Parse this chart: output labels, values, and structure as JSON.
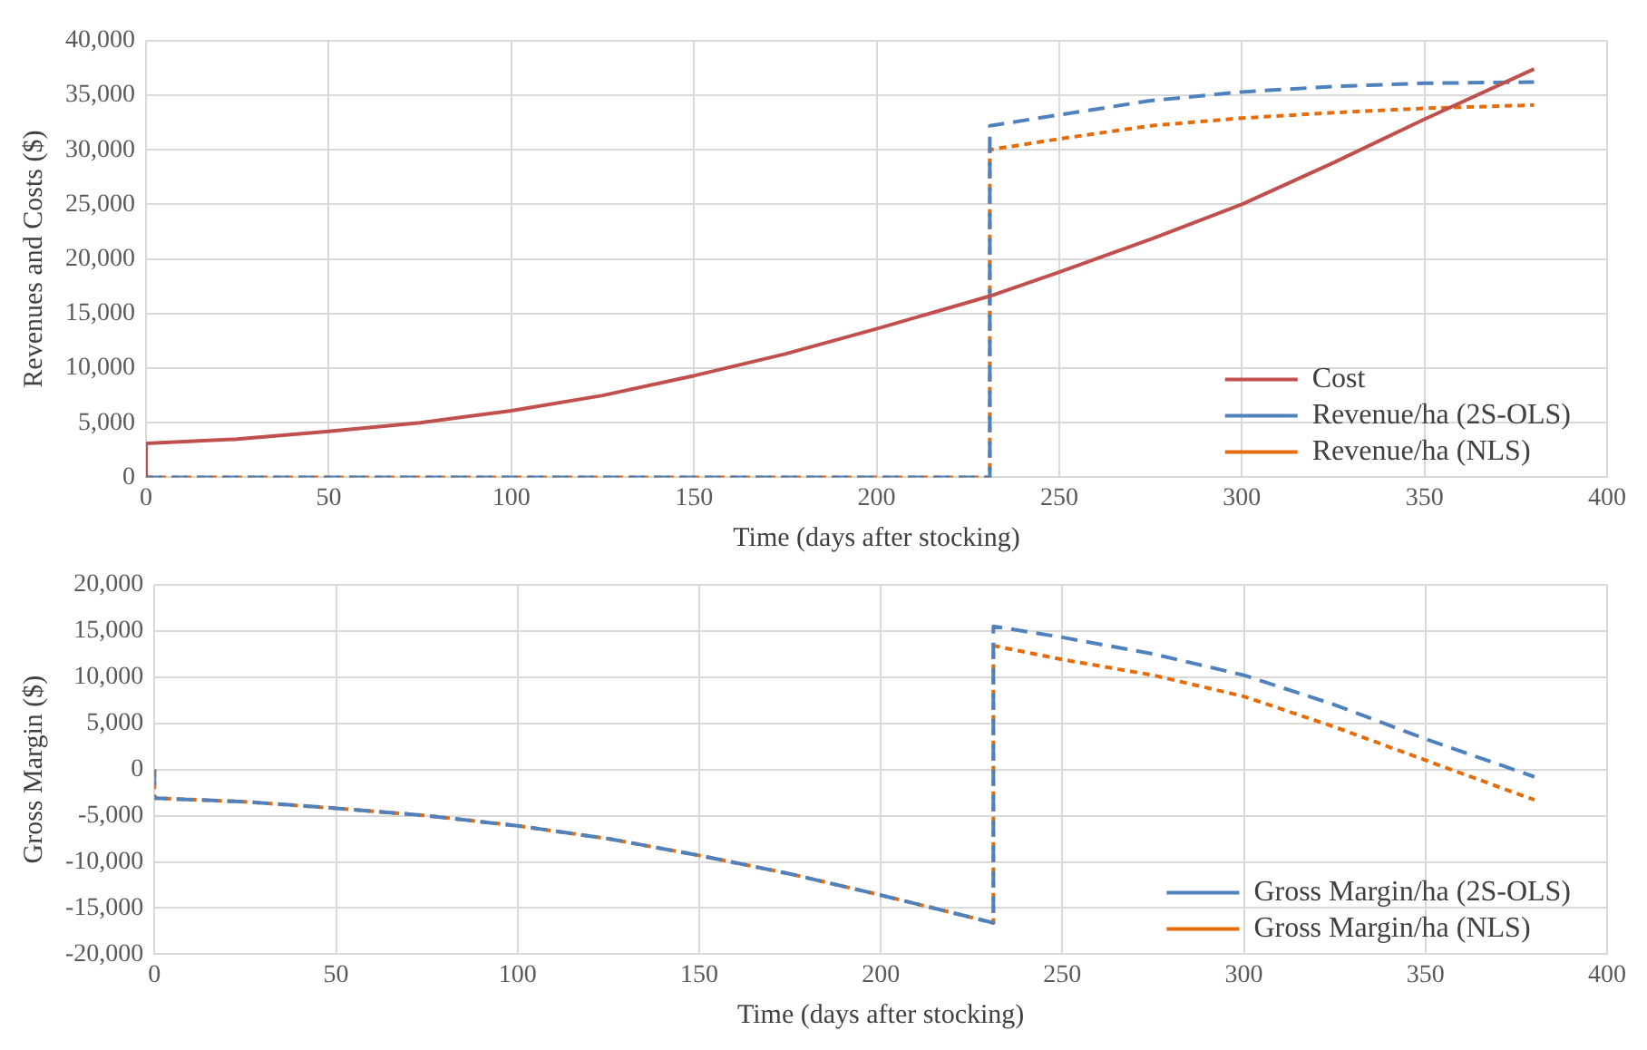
{
  "chart_data": [
    {
      "type": "line",
      "xlabel": "Time (days after stocking)",
      "ylabel": "Revenues and Costs ($)",
      "xlim": [
        0,
        400
      ],
      "xticks": [
        0,
        50,
        100,
        150,
        200,
        250,
        300,
        350,
        400
      ],
      "ylim": [
        0,
        40000
      ],
      "yticks": [
        {
          "value": 0,
          "label": "0"
        },
        {
          "value": 5000,
          "label": "5,000"
        },
        {
          "value": 10000,
          "label": "10,000"
        },
        {
          "value": 15000,
          "label": "15,000"
        },
        {
          "value": 20000,
          "label": "20,000"
        },
        {
          "value": 25000,
          "label": "25,000"
        },
        {
          "value": 30000,
          "label": "30,000"
        },
        {
          "value": 35000,
          "label": "35,000"
        },
        {
          "value": 40000,
          "label": "40,000"
        }
      ],
      "grid": true,
      "legend": "bottom right",
      "marker": "none",
      "series": [
        {
          "name": "Cost",
          "color": "#c0504d",
          "line_style": "solid",
          "x": [
            0,
            0,
            25,
            50,
            75,
            100,
            125,
            150,
            175,
            200,
            231,
            250,
            275,
            300,
            325,
            350,
            380
          ],
          "values": [
            0,
            3100,
            3500,
            4200,
            5000,
            6100,
            7500,
            9300,
            11300,
            13600,
            16600,
            18800,
            21800,
            25000,
            28800,
            32800,
            37400
          ]
        },
        {
          "name": "Revenue/ha (2S-OLS)",
          "color": "#4f81bd",
          "line_style": "dashed",
          "x": [
            0,
            231,
            231,
            250,
            275,
            300,
            325,
            350,
            380
          ],
          "values": [
            0,
            0,
            32200,
            33200,
            34500,
            35300,
            35800,
            36100,
            36200
          ]
        },
        {
          "name": "Revenue/ha (NLS)",
          "color": "#e46c0a",
          "line_style": "dotted",
          "x": [
            0,
            231,
            231,
            250,
            275,
            300,
            325,
            350,
            380
          ],
          "values": [
            0,
            0,
            30000,
            31000,
            32200,
            32900,
            33400,
            33800,
            34100
          ]
        }
      ]
    },
    {
      "type": "line",
      "xlabel": "Time (days after stocking)",
      "ylabel": "Gross Margin ($)",
      "xlim": [
        0,
        400
      ],
      "xticks": [
        0,
        50,
        100,
        150,
        200,
        250,
        300,
        350,
        400
      ],
      "ylim": [
        -20000,
        20000
      ],
      "yticks": [
        {
          "value": -20000,
          "label": "-20,000"
        },
        {
          "value": -15000,
          "label": "-15,000"
        },
        {
          "value": -10000,
          "label": "-10,000"
        },
        {
          "value": -5000,
          "label": "-5,000"
        },
        {
          "value": 0,
          "label": "0"
        },
        {
          "value": 5000,
          "label": "5,000"
        },
        {
          "value": 10000,
          "label": "10,000"
        },
        {
          "value": 15000,
          "label": "15,000"
        },
        {
          "value": 20000,
          "label": "20,000"
        }
      ],
      "grid": true,
      "legend": "bottom right",
      "marker": "none",
      "series": [
        {
          "name": "Gross Margin/ha (2S-OLS)",
          "color": "#4f81bd",
          "line_style": "dashed",
          "x": [
            0,
            0,
            25,
            50,
            75,
            100,
            125,
            150,
            175,
            200,
            231,
            231,
            250,
            275,
            300,
            325,
            350,
            380
          ],
          "values": [
            0,
            -3100,
            -3500,
            -4200,
            -5000,
            -6100,
            -7500,
            -9300,
            -11300,
            -13600,
            -16600,
            15500,
            14300,
            12500,
            10200,
            7000,
            3300,
            -800
          ]
        },
        {
          "name": "Gross Margin/ha (NLS)",
          "color": "#e46c0a",
          "line_style": "dotted",
          "x": [
            0,
            0,
            25,
            50,
            75,
            100,
            125,
            150,
            175,
            200,
            231,
            231,
            250,
            275,
            300,
            325,
            350,
            380
          ],
          "values": [
            0,
            -3100,
            -3500,
            -4200,
            -5000,
            -6100,
            -7500,
            -9300,
            -11300,
            -13600,
            -16600,
            13400,
            11900,
            10200,
            7900,
            4600,
            1000,
            -3300
          ]
        }
      ]
    }
  ]
}
